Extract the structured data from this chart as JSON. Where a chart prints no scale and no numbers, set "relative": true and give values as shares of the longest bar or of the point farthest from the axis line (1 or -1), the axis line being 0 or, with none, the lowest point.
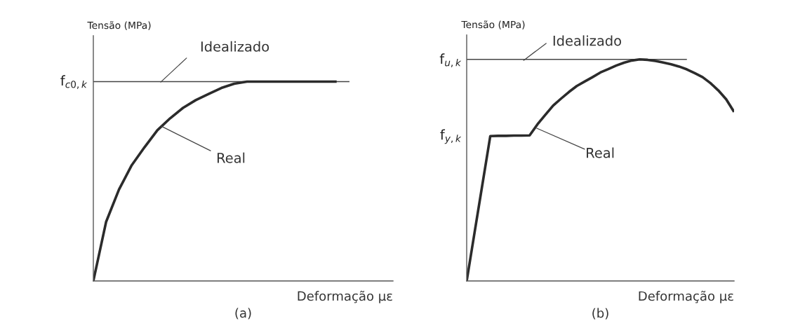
{
  "chart_data": [
    {
      "type": "line",
      "relative": true,
      "title": "(a)",
      "xlabel": "Deformação με",
      "ylabel": "Tensão (MPa)",
      "marker": "none",
      "line_style": "solid",
      "categories": [
        null,
        null,
        null,
        null,
        null,
        null,
        null,
        null,
        null,
        null,
        null,
        null,
        null,
        null,
        null,
        null,
        null,
        null,
        null,
        null,
        null
      ],
      "series": [
        {
          "color": "#444444",
          "values": [
            1,
            1,
            1,
            1,
            1,
            1,
            1,
            1,
            1,
            1,
            1,
            1,
            1,
            1,
            1,
            1,
            1,
            1,
            1,
            1,
            1
          ]
        },
        {
          "color": "#2b2b2b",
          "values": [
            0,
            0.297,
            0.458,
            0.581,
            0.671,
            0.756,
            0.816,
            0.868,
            0.907,
            0.938,
            0.968,
            0.989,
            1,
            1,
            1,
            1,
            1,
            1,
            1,
            1,
            null
          ]
        }
      ],
      "annotations": [
        "f$_{c0,k}$",
        "Idealizado",
        "Real"
      ]
    },
    {
      "type": "line",
      "relative": true,
      "title": "(b)",
      "xlabel": "Deformação με",
      "ylabel": "Tensão (MPa)",
      "marker": "none",
      "line_style": "solid",
      "categories": [
        null,
        null,
        null,
        null,
        null,
        null,
        null,
        null,
        null,
        null,
        null,
        null,
        null,
        null,
        null,
        null,
        null,
        null,
        null,
        null,
        null,
        null,
        null,
        null,
        null,
        null,
        null,
        null,
        null,
        null,
        null,
        null,
        null,
        null,
        null
      ],
      "series": [
        {
          "color": "#444444",
          "values": [
            1,
            1,
            1,
            1,
            1,
            1,
            1,
            1,
            1,
            1,
            1,
            1,
            1,
            1,
            1,
            1,
            1,
            1,
            1,
            1,
            1,
            1,
            1,
            1,
            1,
            1,
            1,
            1,
            1,
            null,
            null,
            null,
            null,
            null,
            null
          ]
        },
        {
          "color": "#2b2b2b",
          "values": [
            0,
            0.218,
            0.436,
            0.654,
            0.655,
            0.655,
            0.656,
            0.656,
            0.657,
            0.707,
            0.75,
            0.792,
            0.823,
            0.853,
            0.88,
            0.9,
            0.92,
            0.941,
            0.956,
            0.972,
            0.985,
            0.995,
            1,
            0.998,
            0.993,
            0.986,
            0.978,
            0.968,
            0.955,
            0.938,
            0.92,
            0.893,
            0.86,
            0.82,
            0.763
          ]
        }
      ],
      "annotations": [
        "f$_{u,k}$",
        "f$_{y,k}$",
        "Idealizado",
        "Real"
      ]
    }
  ]
}
